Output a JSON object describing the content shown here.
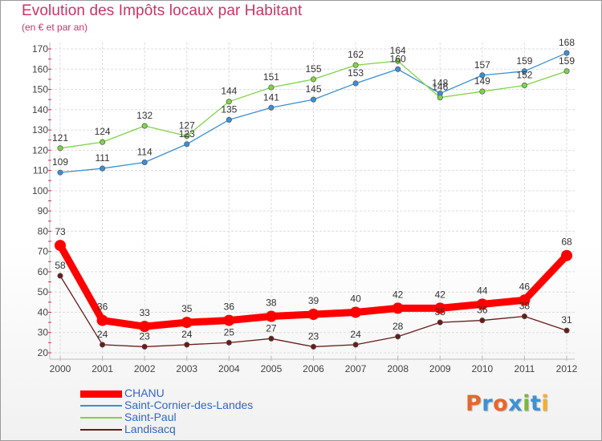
{
  "colors": {
    "title": "#cc3366",
    "legend_text": "#3366cc",
    "grid": "#dddddd",
    "axis": "#bbbbbb"
  },
  "logo": {
    "text": "Proxiti",
    "letters": [
      {
        "char": "P",
        "color": "#e8662c"
      },
      {
        "char": "r",
        "color": "#3a93d4"
      },
      {
        "char": "o",
        "color": "#e8662c"
      },
      {
        "char": "x",
        "color": "#3a93d4"
      },
      {
        "char": "i",
        "color": "#7ab83c"
      },
      {
        "char": "t",
        "color": "#3a93d4"
      },
      {
        "char": "i",
        "color": "#f0b030"
      }
    ]
  },
  "chart_data": {
    "type": "line",
    "title": "Evolution des Impôts locaux par Habitant",
    "subtitle": "(en € et par an)",
    "xlabel": "",
    "ylabel": "",
    "ylim": [
      20,
      170
    ],
    "y_ticks": [
      20,
      30,
      40,
      50,
      60,
      70,
      80,
      90,
      100,
      110,
      120,
      130,
      140,
      150,
      160,
      170
    ],
    "grid": true,
    "legend_position": "bottom-left",
    "categories": [
      "2000",
      "2001",
      "2002",
      "2003",
      "2004",
      "2005",
      "2006",
      "2007",
      "2008",
      "2009",
      "2010",
      "2011",
      "2012"
    ],
    "series": [
      {
        "name": "CHANU",
        "color": "#ff0000",
        "style": "thick",
        "values": [
          73,
          36,
          33,
          35,
          36,
          38,
          39,
          40,
          42,
          42,
          44,
          46,
          68
        ]
      },
      {
        "name": "Saint-Cornier-des-Landes",
        "color": "#3b8fd4",
        "style": "normal",
        "values": [
          109,
          111,
          114,
          123,
          135,
          141,
          145,
          153,
          160,
          148,
          157,
          159,
          168
        ]
      },
      {
        "name": "Saint-Paul",
        "color": "#7fd34a",
        "style": "normal",
        "values": [
          121,
          124,
          132,
          127,
          144,
          151,
          155,
          162,
          164,
          146,
          149,
          152,
          159
        ]
      },
      {
        "name": "Landisacq",
        "color": "#6b1a1a",
        "style": "normal",
        "values": [
          58,
          24,
          23,
          24,
          25,
          27,
          23,
          24,
          28,
          35,
          36,
          38,
          31
        ]
      }
    ]
  }
}
